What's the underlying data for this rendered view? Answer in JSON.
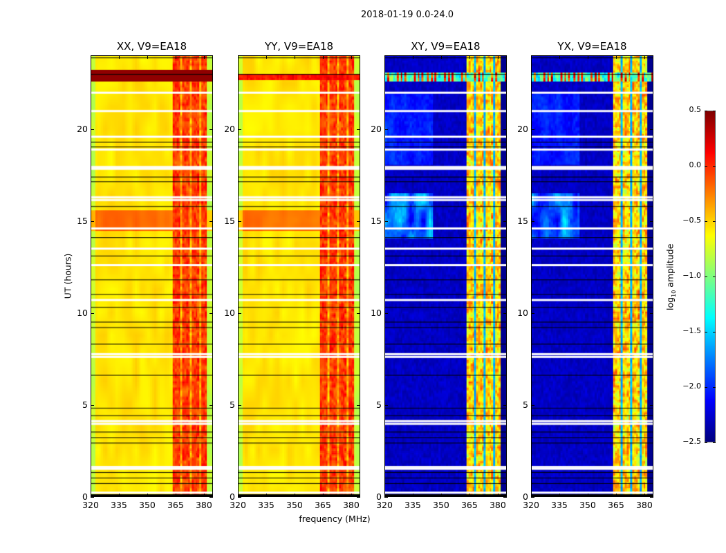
{
  "figure_title": "2018-01-19 0.0-24.0",
  "chart_data": {
    "type": "heatmap",
    "panels": [
      {
        "title": "XX, V9=EA18",
        "pol": "parallel",
        "flare_hours": [
          22.6,
          23.2
        ]
      },
      {
        "title": "YY, V9=EA18",
        "pol": "parallel",
        "flare_hours": [
          22.7,
          23.0
        ]
      },
      {
        "title": "XY, V9=EA18",
        "pol": "cross",
        "flare_hours": [
          22.6,
          23.1
        ]
      },
      {
        "title": "YX, V9=EA18",
        "pol": "cross",
        "flare_hours": [
          22.6,
          23.1
        ]
      }
    ],
    "xlabel": "frequency (MHz)",
    "ylabel": "UT (hours)",
    "xlim": [
      320,
      384.8
    ],
    "ylim": [
      0,
      24
    ],
    "xticks": [
      "320",
      "335",
      "350",
      "365",
      "380"
    ],
    "xtick_values": [
      320,
      335,
      350,
      365,
      380
    ],
    "yticks": [
      "0",
      "5",
      "10",
      "15",
      "20"
    ],
    "ytick_values": [
      0,
      5,
      10,
      15,
      20
    ],
    "strong_band_mhz": [
      363,
      381
    ],
    "band_gaps_mhz": [
      367.5,
      372.5,
      377.5
    ],
    "typical_level": {
      "parallel_background": -0.55,
      "parallel_band": -0.05,
      "cross_background": -2.3,
      "cross_band": -0.5
    },
    "flagged_hours": [
      22.0,
      21.0,
      19.6,
      18.9,
      17.95,
      17.85,
      16.3,
      16.15,
      14.6,
      13.5,
      12.6,
      10.7,
      7.75,
      7.6,
      4.1,
      3.95,
      1.6,
      1.5,
      0.2
    ],
    "dark_line_hours": [
      23.9,
      23.0,
      19.3,
      19.05,
      17.4,
      17.15,
      15.8,
      14.1,
      13.1,
      11.8,
      11.0,
      10.3,
      9.5,
      9.2,
      8.3,
      6.6,
      4.8,
      4.4,
      3.5,
      3.2,
      2.9,
      1.3,
      1.0,
      0.7
    ],
    "colorbar": {
      "label_prefix": "log",
      "label_sub": "10",
      "label_suffix": " amplitude",
      "range": [
        -2.5,
        0.5
      ],
      "ticks": [
        "0.5",
        "0.0",
        "−0.5",
        "−1.0",
        "−1.5",
        "−2.0",
        "−2.5"
      ],
      "tick_values": [
        0.5,
        0.0,
        -0.5,
        -1.0,
        -1.5,
        -2.0,
        -2.5
      ],
      "colormap": "jet"
    }
  }
}
